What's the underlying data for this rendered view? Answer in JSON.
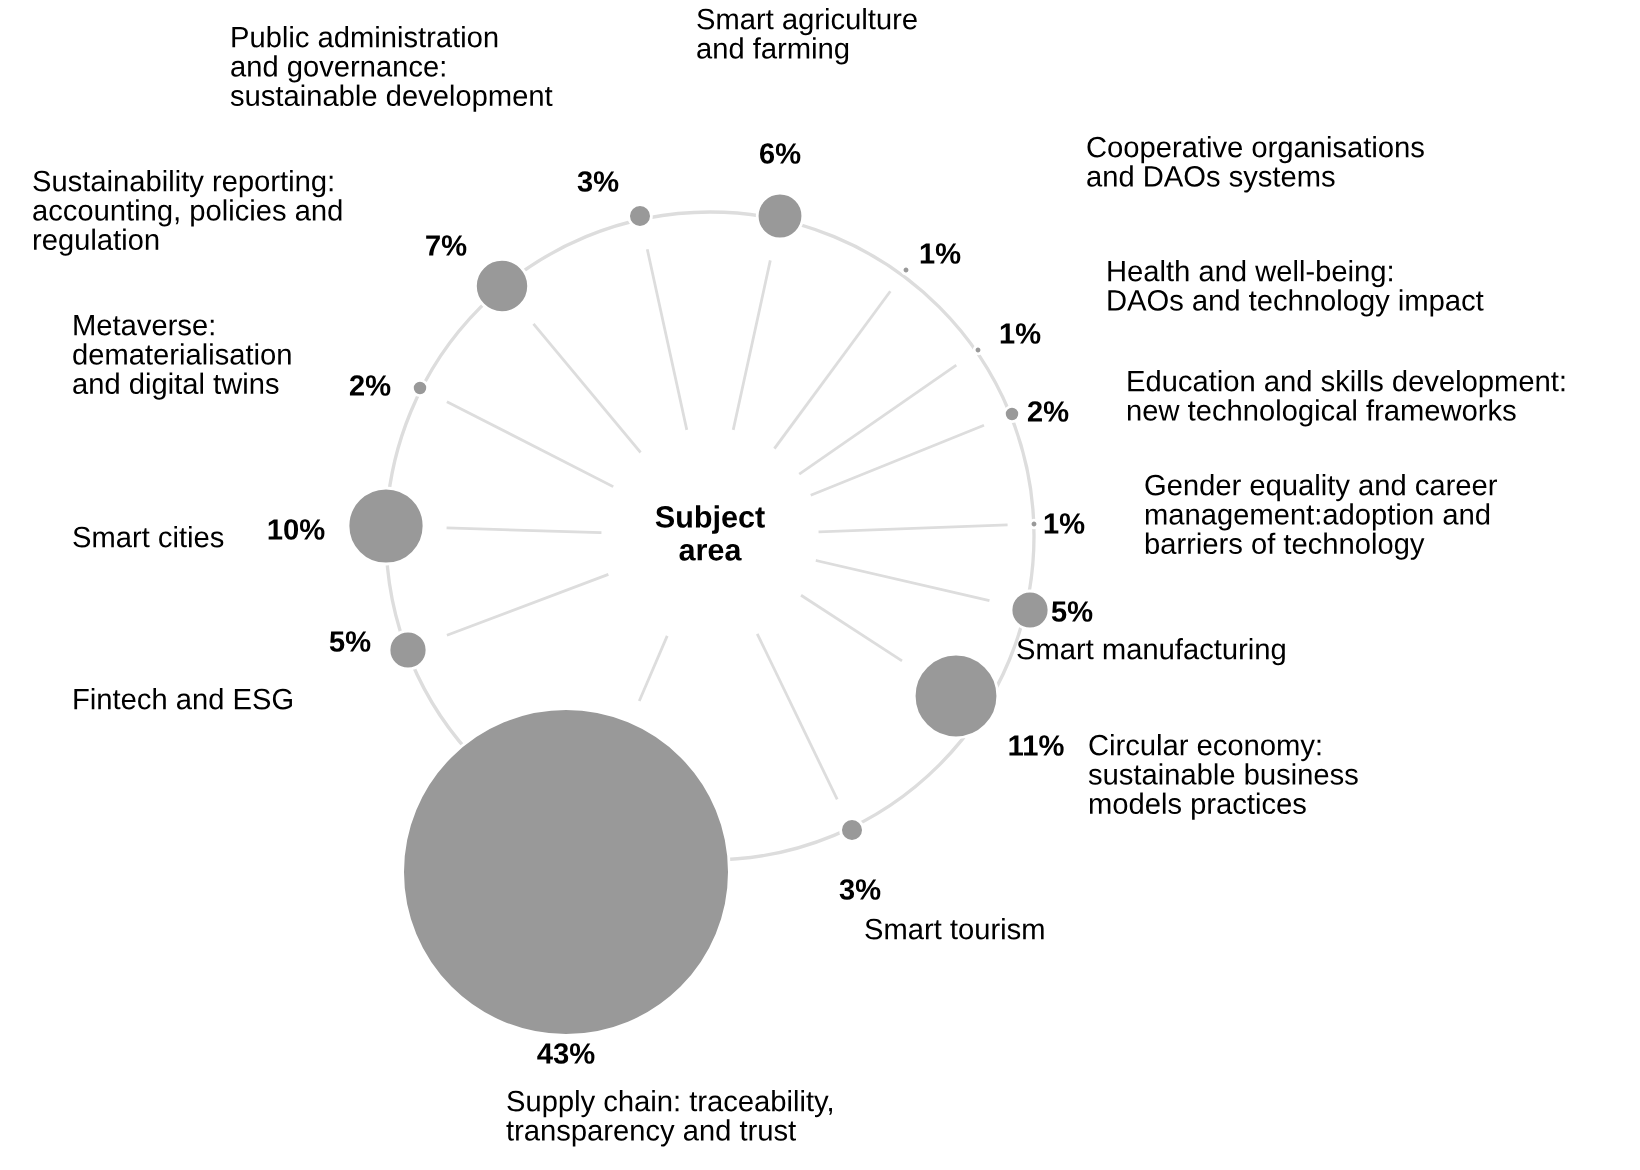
{
  "chart_data": {
    "type": "other",
    "title": "Subject\narea",
    "categories": [
      "Smart agriculture\nand farming",
      "Cooperative organisations\nand DAOs systems",
      "Health and well-being:\nDAOs and technology impact",
      "Education and skills development:\nnew technological frameworks",
      "Gender equality and career\nmanagement:adoption and\nbarriers of technology",
      "Smart manufacturing",
      "Circular economy:\nsustainable business\nmodels practices",
      "Smart tourism",
      "Supply chain: traceability,\ntransparency and trust",
      "Fintech and ESG",
      "Smart cities",
      "Metaverse:\ndematerialisation\nand digital twins",
      "Sustainability reporting:\naccounting, policies and\nregulation",
      "Public administration\nand governance:\nsustainable development"
    ],
    "values": [
      6,
      1,
      1,
      2,
      1,
      5,
      11,
      3,
      43,
      5,
      10,
      2,
      7,
      3
    ],
    "value_labels": [
      "6%",
      "1%",
      "1%",
      "2%",
      "1%",
      "5%",
      "11%",
      "3%",
      "43%",
      "5%",
      "10%",
      "2%",
      "7%",
      "3%"
    ],
    "color": "#999999"
  }
}
